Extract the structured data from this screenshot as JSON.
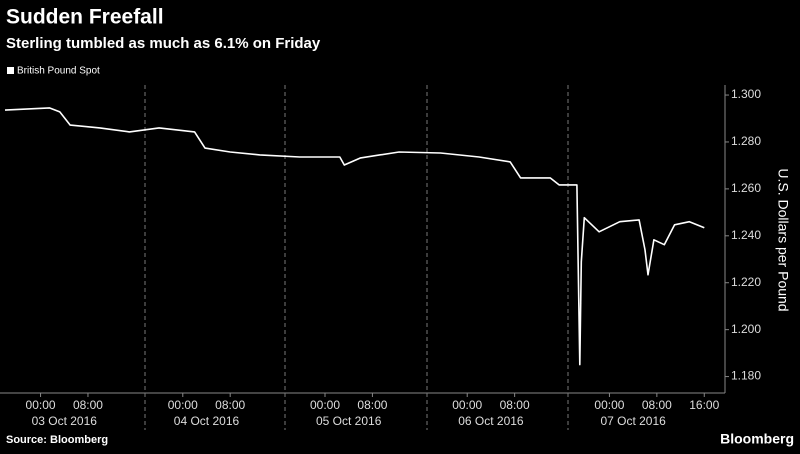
{
  "chart_data": {
    "type": "line",
    "title": "Sudden Freefall",
    "subtitle": "Sterling tumbled as much as 6.1% on Friday",
    "y_axis_label": "U.S. Dollars per Pound",
    "source": "Source: Bloomberg",
    "brand": "Bloomberg",
    "x": [
      "2016-10-02T18:00",
      "2016-10-03T01:30",
      "2016-10-03T03:15",
      "2016-10-03T05:00",
      "2016-10-03T10:00",
      "2016-10-03T15:00",
      "2016-10-03T20:00",
      "2016-10-04T02:00",
      "2016-10-04T03:45",
      "2016-10-04T08:00",
      "2016-10-04T13:00",
      "2016-10-04T19:45",
      "2016-10-05T02:30",
      "2016-10-05T03:15",
      "2016-10-05T06:00",
      "2016-10-05T12:30",
      "2016-10-05T19:30",
      "2016-10-06T02:00",
      "2016-10-06T07:15",
      "2016-10-06T09:00",
      "2016-10-06T14:00",
      "2016-10-06T15:30",
      "2016-10-06T18:30",
      "2016-10-06T19:00",
      "2016-10-06T19:15",
      "2016-10-06T19:45",
      "2016-10-06T22:15",
      "2016-10-07T01:45",
      "2016-10-07T05:00",
      "2016-10-07T06:00",
      "2016-10-07T06:30",
      "2016-10-07T07:30",
      "2016-10-07T09:15",
      "2016-10-07T11:00",
      "2016-10-07T13:30",
      "2016-10-07T16:00"
    ],
    "series": [
      {
        "name": "British Pound Spot",
        "color": "#ffffff",
        "values": [
          1.2936,
          1.2945,
          1.2928,
          1.2872,
          1.286,
          1.2843,
          1.286,
          1.2843,
          1.2774,
          1.2757,
          1.2745,
          1.2736,
          1.2736,
          1.2702,
          1.2732,
          1.2757,
          1.2753,
          1.2736,
          1.2715,
          1.2647,
          1.2647,
          1.2617,
          1.2617,
          1.1851,
          1.2289,
          1.2477,
          1.2417,
          1.246,
          1.2468,
          1.234,
          1.2234,
          1.2383,
          1.2362,
          1.2447,
          1.246,
          1.2434
        ]
      }
    ],
    "xlim": [
      "2016-10-02T18:00",
      "2016-10-07T19:30"
    ],
    "xticks": [
      {
        "value": "2016-10-03T00:00",
        "label": "00:00"
      },
      {
        "value": "2016-10-03T08:00",
        "label": "08:00"
      },
      {
        "value": "2016-10-04T00:00",
        "label": "00:00"
      },
      {
        "value": "2016-10-04T08:00",
        "label": "08:00"
      },
      {
        "value": "2016-10-05T00:00",
        "label": "00:00"
      },
      {
        "value": "2016-10-05T08:00",
        "label": "08:00"
      },
      {
        "value": "2016-10-06T00:00",
        "label": "00:00"
      },
      {
        "value": "2016-10-06T08:00",
        "label": "08:00"
      },
      {
        "value": "2016-10-07T00:00",
        "label": "00:00"
      },
      {
        "value": "2016-10-07T08:00",
        "label": "08:00"
      },
      {
        "value": "2016-10-07T16:00",
        "label": "16:00"
      }
    ],
    "x_date_labels": [
      "03 Oct 2016",
      "04 Oct 2016",
      "05 Oct 2016",
      "06 Oct 2016",
      "07 Oct 2016"
    ],
    "ylim": [
      1.173,
      1.303
    ],
    "yticks": [
      {
        "value": 1.18,
        "label": "1.180"
      },
      {
        "value": 1.2,
        "label": "1.200"
      },
      {
        "value": 1.22,
        "label": "1.220"
      },
      {
        "value": 1.24,
        "label": "1.240"
      },
      {
        "value": 1.26,
        "label": "1.260"
      },
      {
        "value": 1.28,
        "label": "1.280"
      },
      {
        "value": 1.3,
        "label": "1.300"
      }
    ],
    "y_axis_side": "right"
  }
}
